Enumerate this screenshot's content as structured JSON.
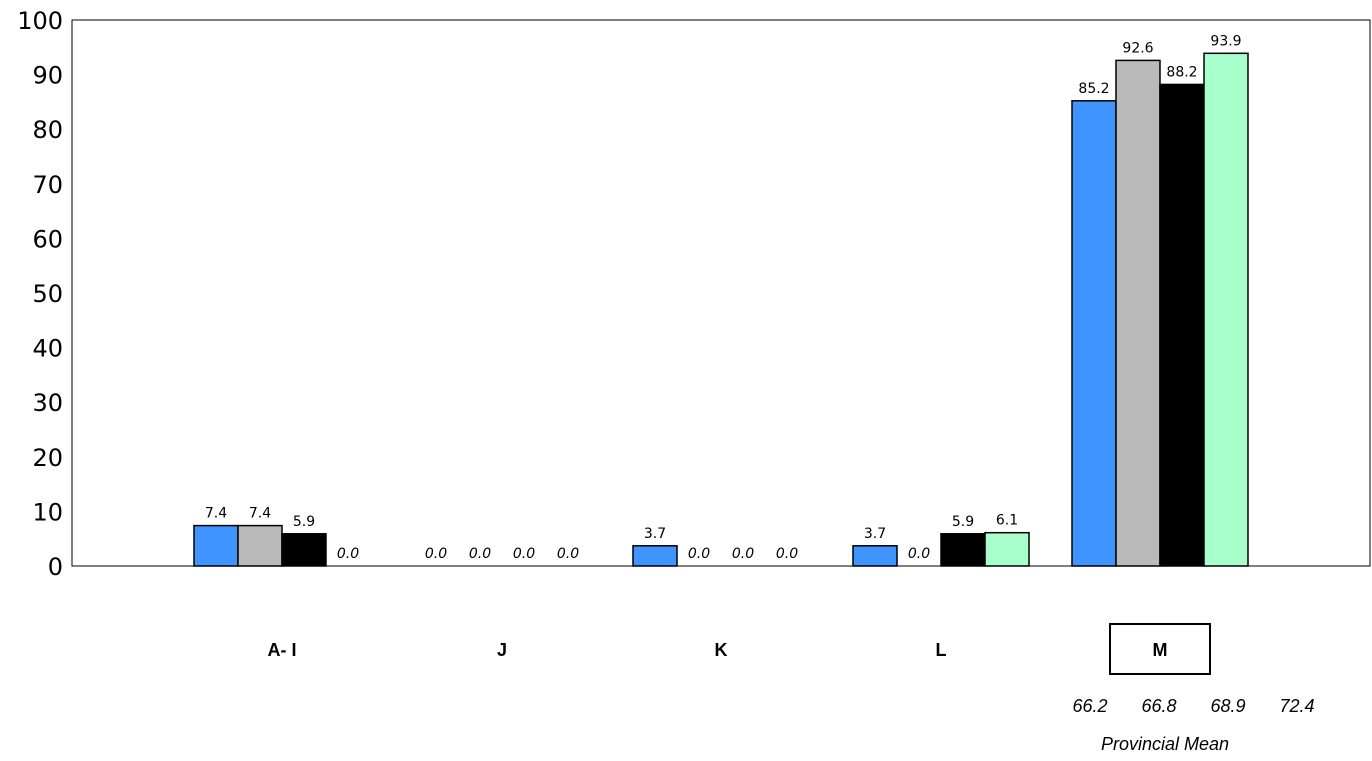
{
  "chart_data": {
    "type": "bar",
    "categories": [
      "A- I",
      "J",
      "K",
      "L",
      "M"
    ],
    "highlighted_category": "M",
    "series": [
      {
        "color": "#3f94ff",
        "values": [
          7.4,
          0.0,
          3.7,
          3.7,
          85.2
        ]
      },
      {
        "color": "#bababa",
        "values": [
          7.4,
          0.0,
          0.0,
          0.0,
          92.6
        ]
      },
      {
        "color": "#000000",
        "values": [
          5.9,
          0.0,
          0.0,
          5.9,
          88.2
        ]
      },
      {
        "color": "#a8ffcc",
        "values": [
          0.0,
          0.0,
          0.0,
          6.1,
          93.9
        ]
      }
    ],
    "value_labels": [
      [
        "7.4",
        "7.4",
        "5.9",
        "0.0"
      ],
      [
        "0.0",
        "0.0",
        "0.0",
        "0.0"
      ],
      [
        "3.7",
        "0.0",
        "0.0",
        "0.0"
      ],
      [
        "3.7",
        "0.0",
        "5.9",
        "6.1"
      ],
      [
        "85.2",
        "92.6",
        "88.2",
        "93.9"
      ]
    ],
    "y_ticks": [
      "0",
      "10",
      "20",
      "30",
      "40",
      "50",
      "60",
      "70",
      "80",
      "90",
      "100"
    ],
    "ylim": [
      0,
      100
    ],
    "grid": false,
    "provincial_mean": {
      "label": "Provincial Mean",
      "values": [
        "66.2",
        "66.8",
        "68.9",
        "72.4"
      ]
    }
  }
}
